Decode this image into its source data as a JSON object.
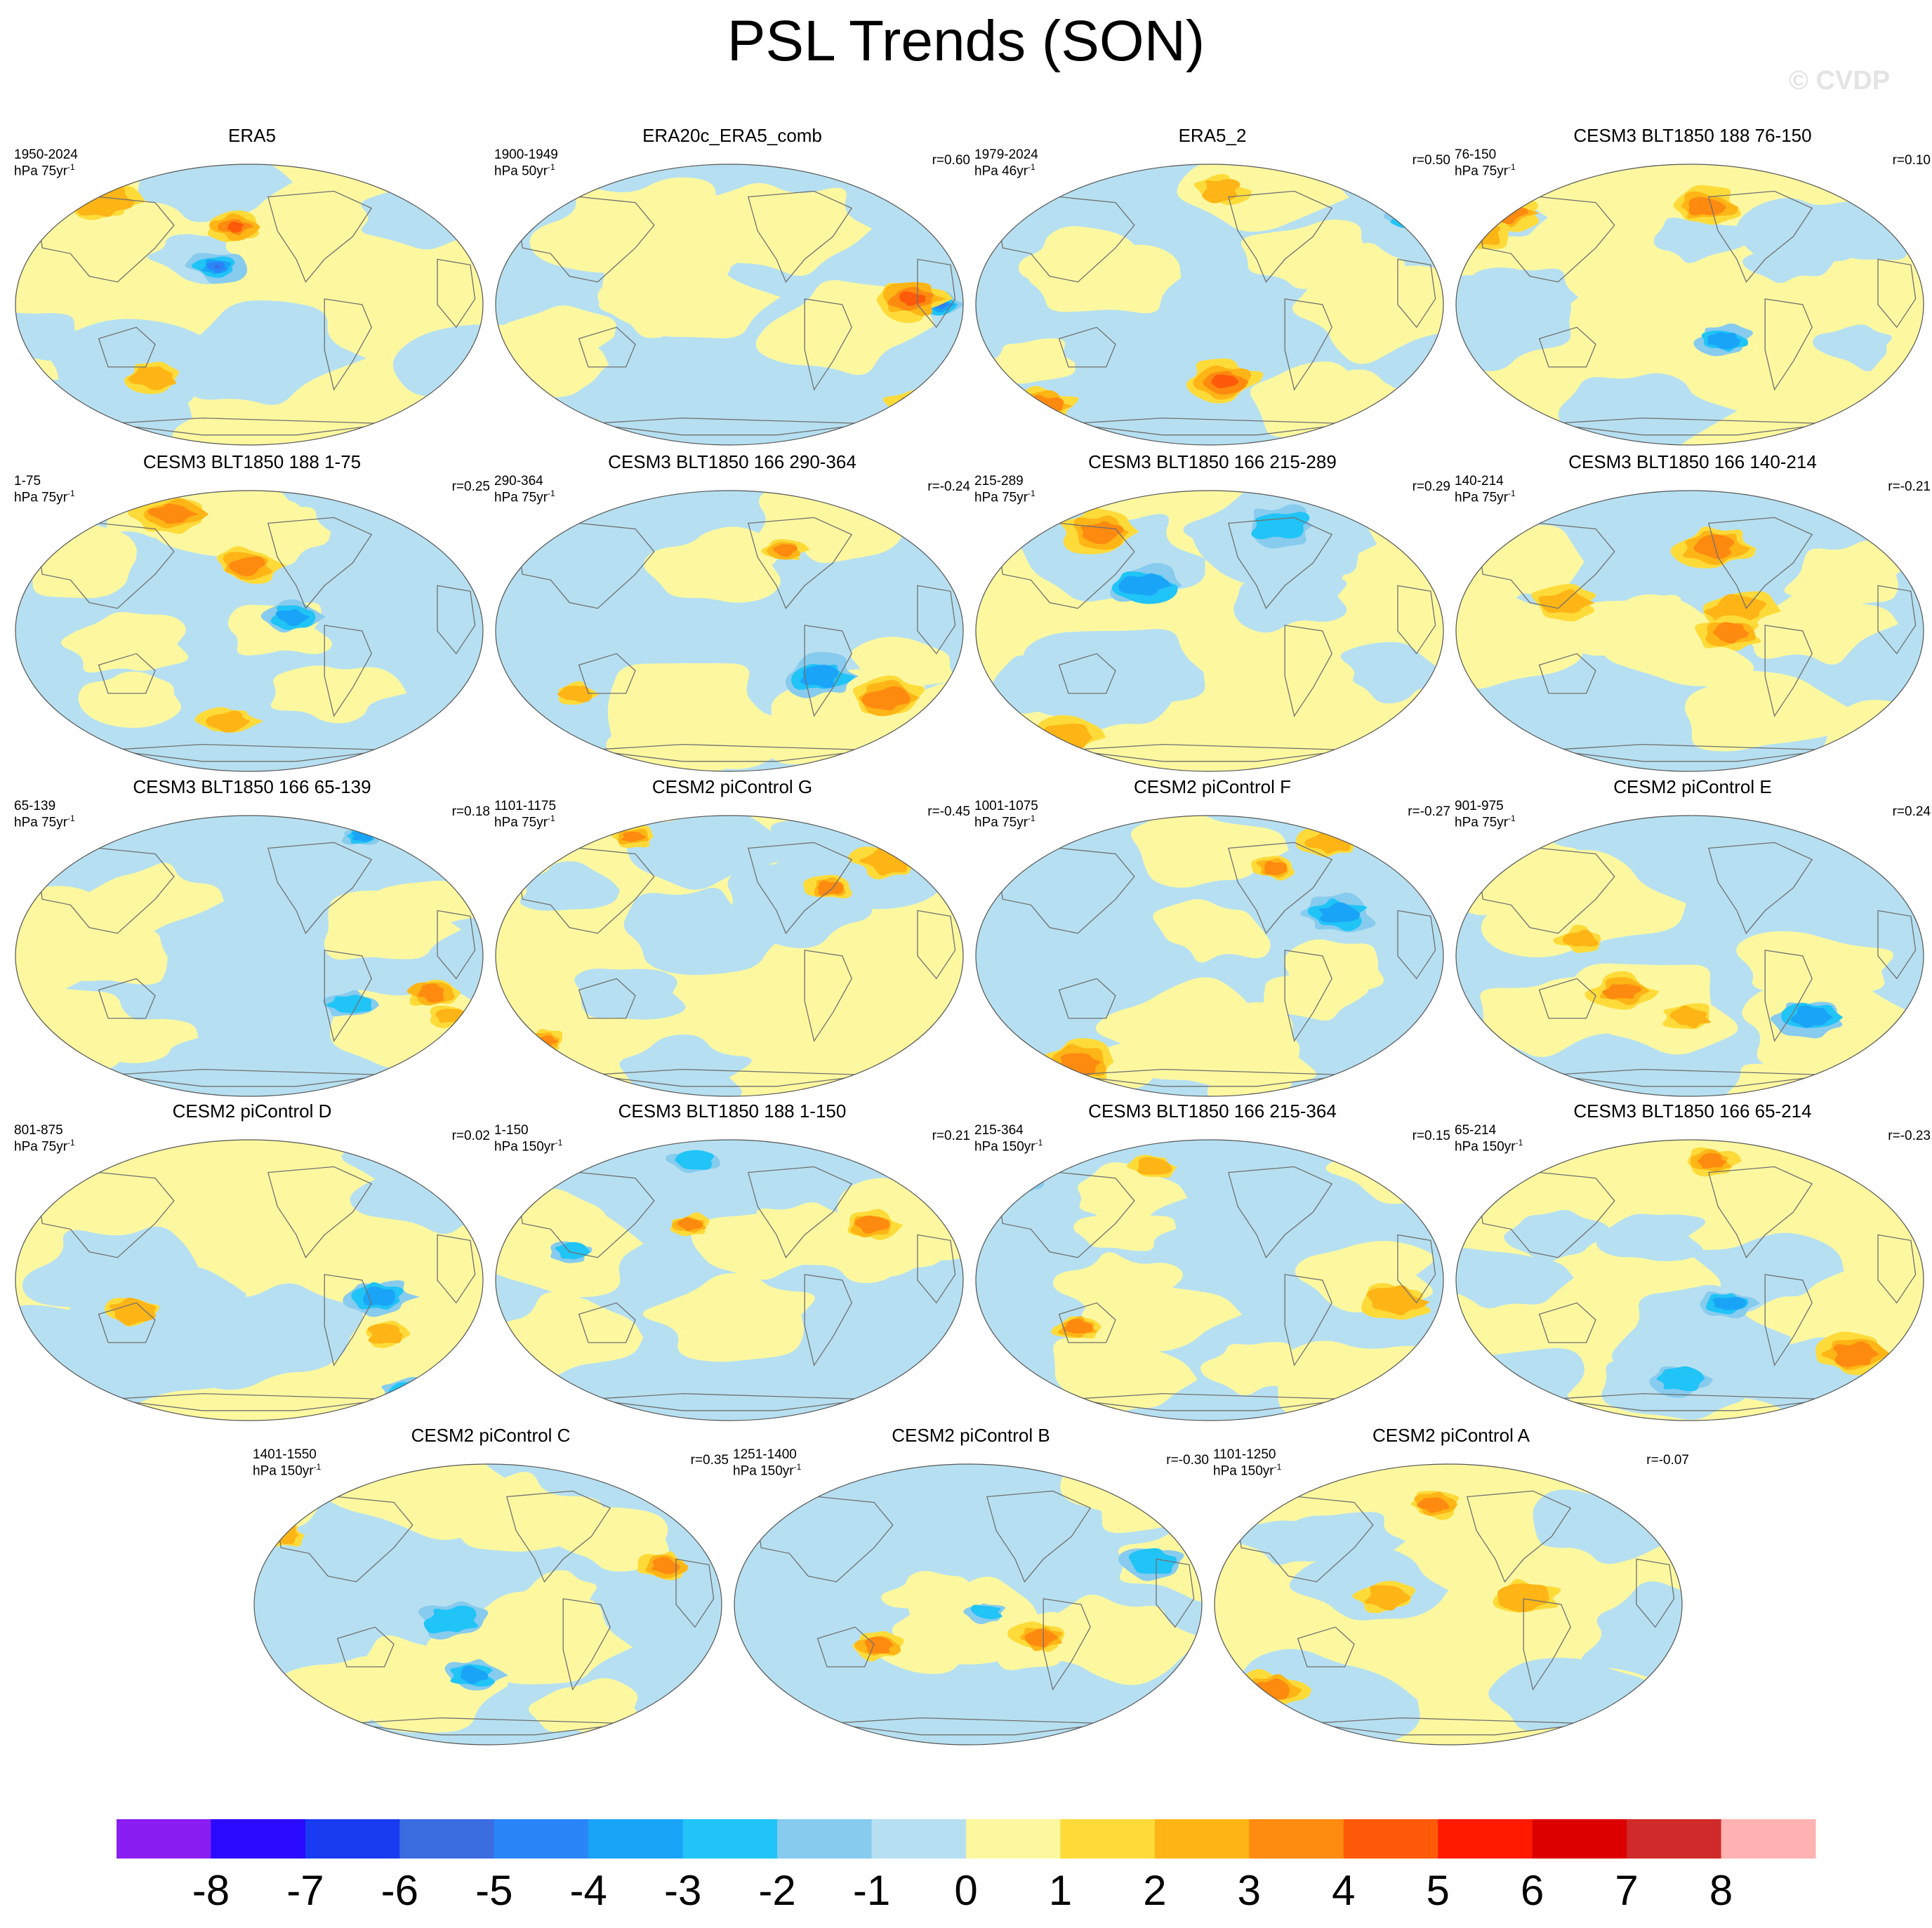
{
  "title": "PSL Trends (SON)",
  "watermark": "© CVDP",
  "chart_data": {
    "type": "heatmap",
    "description_variable": "PSL",
    "title": "PSL Trends (SON)",
    "colorbar": {
      "ticks": [
        "-8",
        "-7",
        "-6",
        "-5",
        "-4",
        "-3",
        "-2",
        "-1",
        "0",
        "1",
        "2",
        "3",
        "4",
        "5",
        "6",
        "7",
        "8"
      ],
      "colors": [
        "#8a1df1",
        "#2b0aff",
        "#1a3bf0",
        "#3a6de0",
        "#2a85f8",
        "#1aa4f7",
        "#20c4f7",
        "#87cbee",
        "#b6e0f1",
        "#fdf8a0",
        "#ffdb3a",
        "#ffb515",
        "#ff8a10",
        "#ff5a0a",
        "#ff1a00",
        "#dc0000",
        "#d02a2a",
        "#ffb2b2"
      ]
    },
    "panels": [
      {
        "name": "ERA5",
        "period": "1950-2024",
        "units": "hPa 75yr",
        "corr": ""
      },
      {
        "name": "ERA20c_ERA5_comb",
        "period": "1900-1949",
        "units": "hPa 50yr",
        "corr": "r=0.60"
      },
      {
        "name": "ERA5_2",
        "period": "1979-2024",
        "units": "hPa 46yr",
        "corr": "r=0.50"
      },
      {
        "name": "CESM3 BLT1850 188 76-150",
        "period": "76-150",
        "units": "hPa 75yr",
        "corr": "r=0.10"
      },
      {
        "name": "CESM3 BLT1850 188 1-75",
        "period": "1-75",
        "units": "hPa 75yr",
        "corr": "r=0.25"
      },
      {
        "name": "CESM3 BLT1850 166 290-364",
        "period": "290-364",
        "units": "hPa 75yr",
        "corr": "r=-0.24"
      },
      {
        "name": "CESM3 BLT1850 166 215-289",
        "period": "215-289",
        "units": "hPa 75yr",
        "corr": "r=0.29"
      },
      {
        "name": "CESM3 BLT1850 166 140-214",
        "period": "140-214",
        "units": "hPa 75yr",
        "corr": "r=-0.21"
      },
      {
        "name": "CESM3 BLT1850 166 65-139",
        "period": "65-139",
        "units": "hPa 75yr",
        "corr": "r=0.18"
      },
      {
        "name": "CESM2 piControl G",
        "period": "1101-1175",
        "units": "hPa 75yr",
        "corr": "r=-0.45"
      },
      {
        "name": "CESM2 piControl F",
        "period": "1001-1075",
        "units": "hPa 75yr",
        "corr": "r=-0.27"
      },
      {
        "name": "CESM2 piControl E",
        "period": "901-975",
        "units": "hPa 75yr",
        "corr": "r=0.24"
      },
      {
        "name": "CESM2 piControl D",
        "period": "801-875",
        "units": "hPa 75yr",
        "corr": "r=0.02"
      },
      {
        "name": "CESM3 BLT1850 188 1-150",
        "period": "1-150",
        "units": "hPa 150yr",
        "corr": "r=0.21"
      },
      {
        "name": "CESM3 BLT1850 166 215-364",
        "period": "215-364",
        "units": "hPa 150yr",
        "corr": "r=0.15"
      },
      {
        "name": "CESM3 BLT1850 166 65-214",
        "period": "65-214",
        "units": "hPa 150yr",
        "corr": "r=-0.23"
      },
      {
        "name": "CESM2 piControl C",
        "period": "1401-1550",
        "units": "hPa 150yr",
        "corr": "r=0.35"
      },
      {
        "name": "CESM2 piControl B",
        "period": "1251-1400",
        "units": "hPa 150yr",
        "corr": "r=-0.30"
      },
      {
        "name": "CESM2 piControl A",
        "period": "1101-1250",
        "units": "hPa 150yr",
        "corr": "r=-0.07"
      }
    ]
  }
}
